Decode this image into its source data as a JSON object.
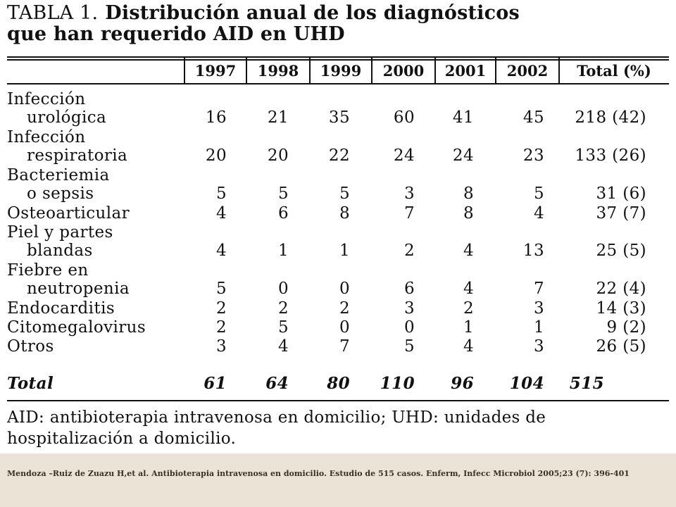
{
  "title": {
    "label": "TABLA 1.",
    "line1": "Distribución anual de los diagnósticos",
    "line2": "que han requerido AID en UHD"
  },
  "table": {
    "headers": [
      "1997",
      "1998",
      "1999",
      "2000",
      "2001",
      "2002",
      "Total (%)"
    ],
    "rows": [
      {
        "label": [
          "Infección",
          "urológica"
        ],
        "values": [
          "16",
          "21",
          "35",
          "60",
          "41",
          "45",
          "218 (42)"
        ]
      },
      {
        "label": [
          "Infección",
          "respiratoria"
        ],
        "values": [
          "20",
          "20",
          "22",
          "24",
          "24",
          "23",
          "133 (26)"
        ]
      },
      {
        "label": [
          "Bacteriemia",
          "o sepsis"
        ],
        "values": [
          "5",
          "5",
          "5",
          "3",
          "8",
          "5",
          "31 (6)"
        ]
      },
      {
        "label": [
          "Osteoarticular"
        ],
        "values": [
          "4",
          "6",
          "8",
          "7",
          "8",
          "4",
          "37 (7)"
        ]
      },
      {
        "label": [
          "Piel y partes",
          "blandas"
        ],
        "values": [
          "4",
          "1",
          "1",
          "2",
          "4",
          "13",
          "25 (5)"
        ]
      },
      {
        "label": [
          "Fiebre en",
          "neutropenia"
        ],
        "values": [
          "5",
          "0",
          "0",
          "6",
          "4",
          "7",
          "22 (4)"
        ]
      },
      {
        "label": [
          "Endocarditis"
        ],
        "values": [
          "2",
          "2",
          "2",
          "3",
          "2",
          "3",
          "14 (3)"
        ]
      },
      {
        "label": [
          "Citomegalovirus"
        ],
        "values": [
          "2",
          "5",
          "0",
          "0",
          "1",
          "1",
          "9 (2)"
        ]
      },
      {
        "label": [
          "Otros"
        ],
        "values": [
          "3",
          "4",
          "7",
          "5",
          "4",
          "3",
          "26 (5)"
        ]
      }
    ],
    "total": {
      "label": "Total",
      "values": [
        "61",
        "64",
        "80",
        "110",
        "96",
        "104",
        "515"
      ]
    }
  },
  "footnote": {
    "line1": "AID: antibioterapia intravenosa en domicilio; UHD: unidades de",
    "line2": "hospitalización a domicilio."
  },
  "citation": "Mendoza –Ruiz de Zuazu H,et al. Antibioterapia  intravenosa  en  domicilio.  Estudio  de  515  casos.  Enferm, Infecc Microbiol 2005;23 (7): 396-401"
}
